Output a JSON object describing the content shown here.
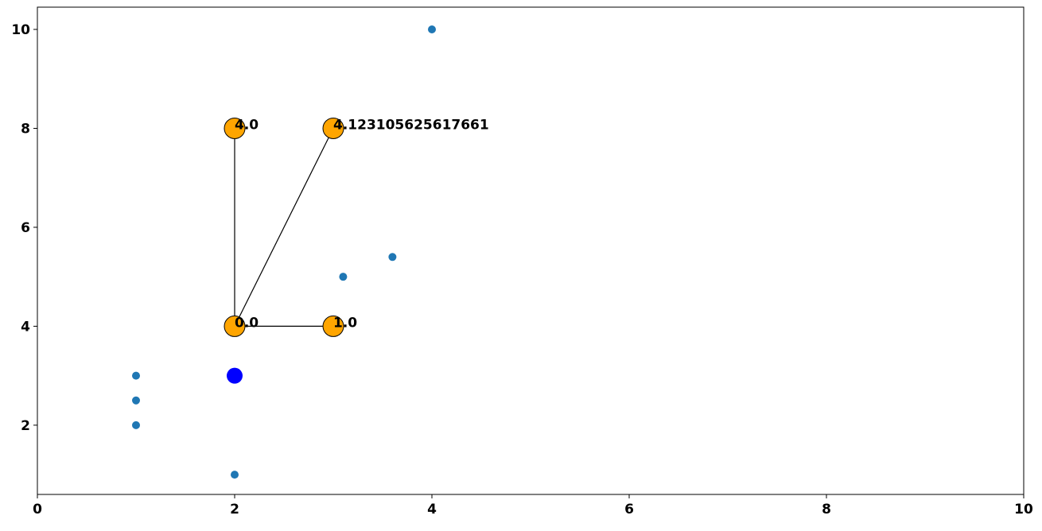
{
  "chart_data": {
    "type": "scatter",
    "xlim": [
      0,
      10
    ],
    "ylim": [
      0.6,
      10.45
    ],
    "xticks": [
      0,
      2,
      4,
      6,
      8,
      10
    ],
    "yticks": [
      2,
      4,
      6,
      8,
      10
    ],
    "grid": false,
    "series": [
      {
        "color": "#1f77b4",
        "size": 5,
        "x": [
          4,
          3.6,
          3.1,
          1,
          1,
          1,
          2
        ],
        "values": [
          10,
          5.4,
          5.0,
          3,
          2.5,
          2,
          1
        ]
      },
      {
        "color": "blue",
        "size": 10,
        "x": [
          2
        ],
        "values": [
          3
        ]
      },
      {
        "color": "orange",
        "edgecolor": "black",
        "size": 13,
        "x": [
          2,
          3,
          2,
          3
        ],
        "values": [
          4,
          4,
          8,
          8
        ],
        "labels": [
          "0.0",
          "1.0",
          "4.0",
          "4.123105625617661"
        ],
        "connect_from_first": true
      }
    ]
  }
}
